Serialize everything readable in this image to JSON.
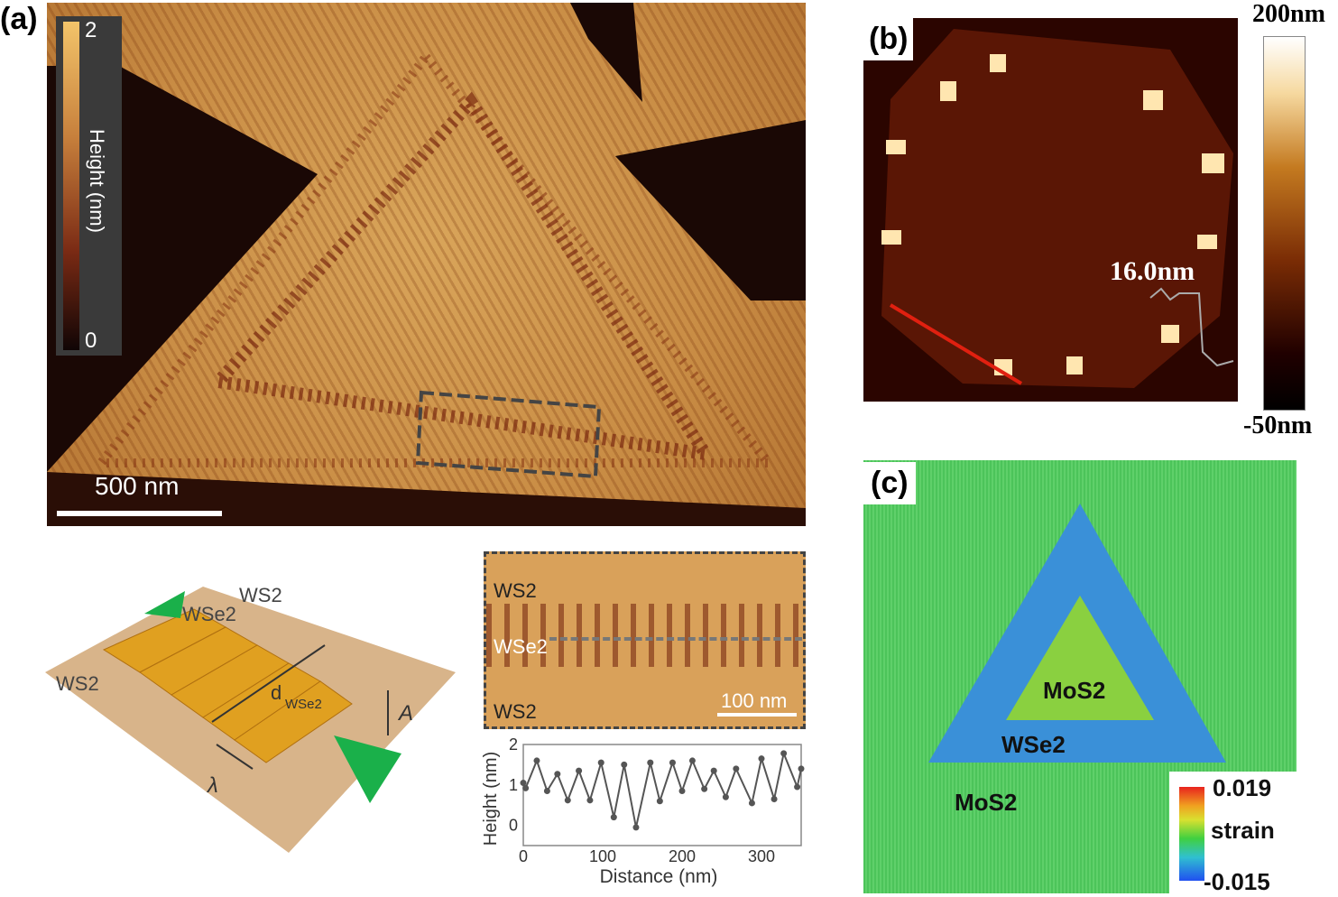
{
  "panel_a": {
    "label": "(a)",
    "colorbar": {
      "max": "2",
      "min": "0",
      "title": "Height (nm)"
    },
    "scale_bar": "500 nm",
    "schematic": {
      "ws2_top": "WS2",
      "wse2": "WSe2",
      "ws2_left": "WS2",
      "d": "d",
      "d_sub": "WSe2",
      "amplitude": "A",
      "wavelength": "λ",
      "arrow_color": "#1ab04a"
    },
    "inset": {
      "top": "WS2",
      "middle": "WSe2",
      "bottom": "WS2",
      "scale_bar": "100 nm"
    }
  },
  "panel_b": {
    "label": "(b)",
    "annotation": "16.0nm",
    "colorbar": {
      "max": "200nm",
      "min": "-50nm"
    }
  },
  "panel_c": {
    "label": "(c)",
    "inner": "MoS2",
    "ring": "WSe2",
    "outer": "MoS2",
    "colorbar": {
      "max": "0.019",
      "title": "strain",
      "min": "-0.015"
    }
  },
  "chart_data": {
    "type": "line",
    "xlabel": "Distance (nm)",
    "ylabel": "Height (nm)",
    "xlim": [
      0,
      350
    ],
    "ylim": [
      -0.5,
      2
    ],
    "xticks": [
      "0",
      "100",
      "200",
      "300"
    ],
    "yticks": [
      "0",
      "1",
      "2"
    ],
    "x": [
      0,
      3,
      17,
      30,
      43,
      56,
      70,
      84,
      98,
      114,
      127,
      142,
      160,
      172,
      188,
      200,
      213,
      228,
      240,
      255,
      268,
      288,
      300,
      316,
      328,
      345,
      350
    ],
    "y": [
      1.05,
      0.92,
      1.6,
      0.85,
      1.27,
      0.62,
      1.35,
      0.62,
      1.55,
      0.2,
      1.5,
      -0.05,
      1.55,
      0.6,
      1.55,
      0.85,
      1.6,
      0.9,
      1.35,
      0.7,
      1.4,
      0.55,
      1.65,
      0.65,
      1.78,
      0.95,
      1.4
    ],
    "color": "#555555"
  }
}
